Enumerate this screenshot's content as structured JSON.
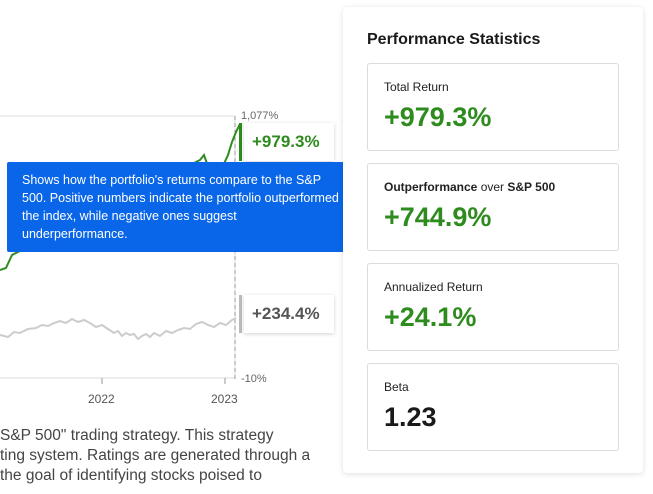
{
  "chart": {
    "tick_top": "1,077%",
    "tick_bottom": "-10%",
    "years": [
      "2022",
      "2023"
    ],
    "portfolio_value": "+979.3%",
    "benchmark_value": "+234.4%",
    "colors": {
      "portfolio": "#2e8b1e",
      "benchmark": "#cccccc"
    }
  },
  "tooltip": {
    "text": "Shows how the portfolio's returns compare to the S&P 500. Positive numbers indicate the portfolio outperformed the index, while negative ones suggest underperformance."
  },
  "description": {
    "lines": [
      "S&P 500\" trading strategy. This strategy",
      "ting system. Ratings are generated through a",
      "the goal of identifying stocks poised to"
    ]
  },
  "stats": {
    "title": "Performance Statistics",
    "total_return": {
      "label": "Total Return",
      "value": "+979.3%"
    },
    "outperformance": {
      "label_strong": "Outperformance",
      "label_mid": " over ",
      "label_ref": "S&P 500",
      "value": "+744.9%"
    },
    "annualized": {
      "label": "Annualized Return",
      "value": "+24.1%"
    },
    "beta": {
      "label": "Beta",
      "value": "1.23"
    }
  }
}
